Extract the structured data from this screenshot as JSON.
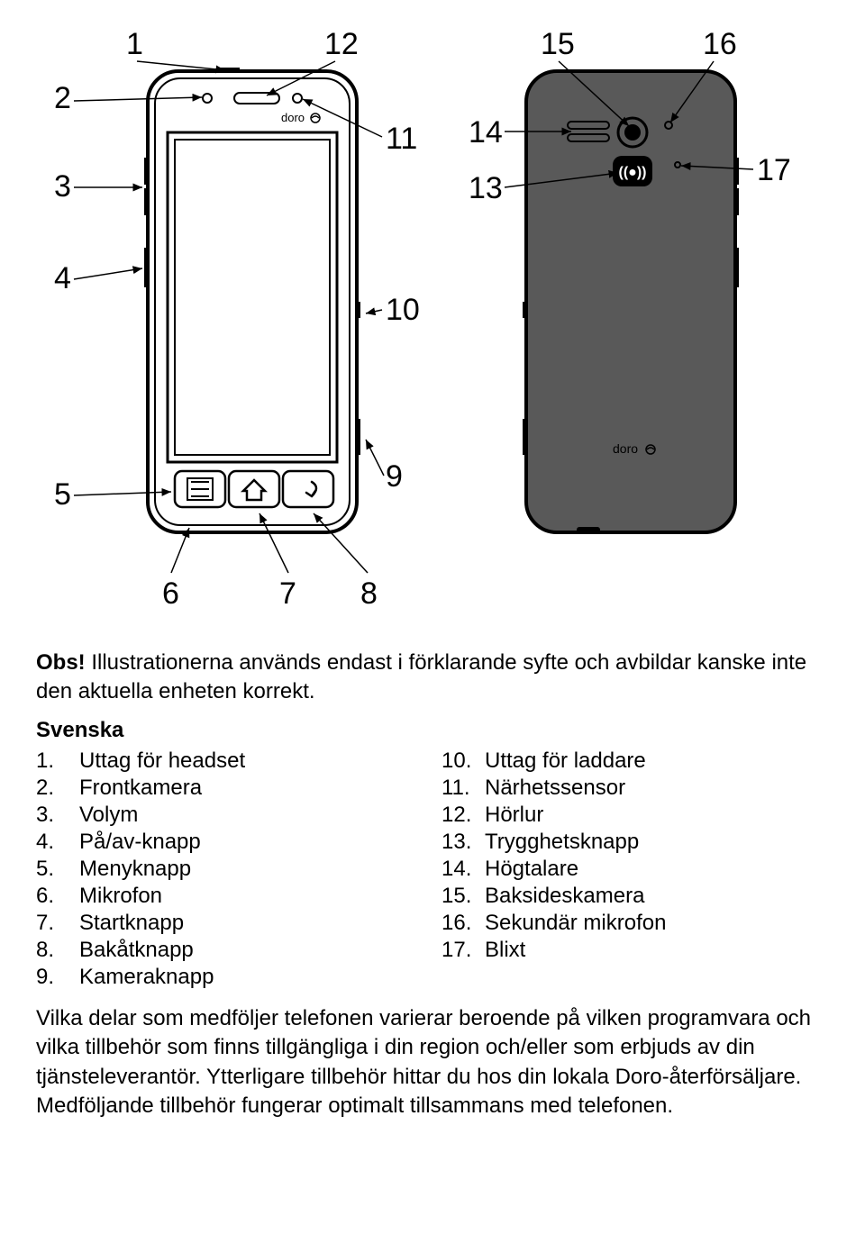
{
  "callouts": {
    "n1": "1",
    "n2": "2",
    "n3": "3",
    "n4": "4",
    "n5": "5",
    "n6": "6",
    "n7": "7",
    "n8": "8",
    "n9": "9",
    "n10": "10",
    "n11": "11",
    "n12": "12",
    "n13": "13",
    "n14": "14",
    "n15": "15",
    "n16": "16",
    "n17": "17"
  },
  "brand": "doro",
  "obs_label": "Obs!",
  "obs_text": " Illustrationerna används endast i förklarande syfte och avbildar kanske inte den aktuella enheten korrekt.",
  "section_title": "Svenska",
  "legend_left": [
    {
      "n": "1.",
      "t": "Uttag för headset"
    },
    {
      "n": "2.",
      "t": "Frontkamera"
    },
    {
      "n": "3.",
      "t": "Volym"
    },
    {
      "n": "4.",
      "t": "På/av-knapp"
    },
    {
      "n": "5.",
      "t": "Menyknapp"
    },
    {
      "n": "6.",
      "t": "Mikrofon"
    },
    {
      "n": "7.",
      "t": "Startknapp"
    },
    {
      "n": "8.",
      "t": "Bakåtknapp"
    },
    {
      "n": "9.",
      "t": "Kameraknapp"
    }
  ],
  "legend_right": [
    {
      "n": "10.",
      "t": "Uttag för laddare"
    },
    {
      "n": "11.",
      "t": "Närhetssensor"
    },
    {
      "n": "12.",
      "t": "Hörlur"
    },
    {
      "n": "13.",
      "t": "Trygghetsknapp"
    },
    {
      "n": "14.",
      "t": "Högtalare"
    },
    {
      "n": "15.",
      "t": "Baksideskamera"
    },
    {
      "n": "16.",
      "t": "Sekundär mikrofon"
    },
    {
      "n": "17.",
      "t": "Blixt"
    }
  ],
  "paragraph": "Vilka delar som medföljer telefonen varierar beroende på vilken programvara och vilka tillbehör som finns tillgängliga i din region och/eller som erbjuds av din tjänsteleverantör. Ytterligare tillbehör hittar du hos din lokala Doro-återförsäljare. Medföljande tillbehör fungerar optimalt tillsammans med telefonen.",
  "colors": {
    "phone_back_fill": "#595959",
    "phone_stroke": "#000000",
    "screen_fill": "#ffffff"
  }
}
